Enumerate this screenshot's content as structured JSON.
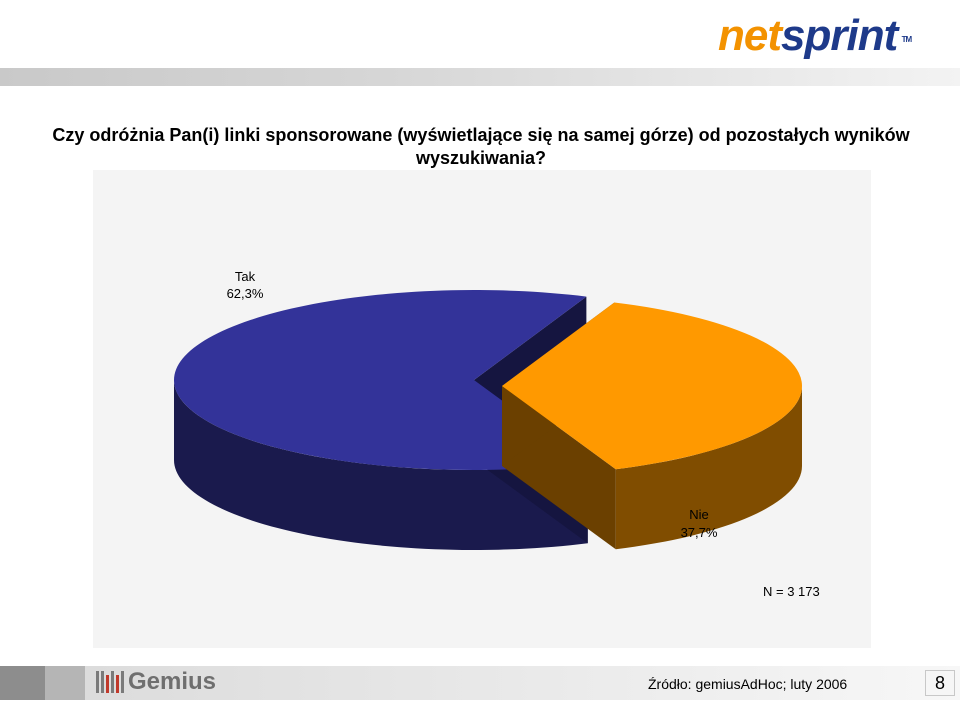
{
  "logo": {
    "part1": "net",
    "part2": "sprint",
    "tm": "TM"
  },
  "title": "Czy odróżnia Pan(i) linki sponsorowane (wyświetlające się na samej górze) od pozostałych wyników wyszukiwania?",
  "chart_data": {
    "type": "pie",
    "title": "Czy odróżnia Pan(i) linki sponsorowane (wyświetlające się na samej górze) od pozostałych wyników wyszukiwania?",
    "categories": [
      "Tak",
      "Nie"
    ],
    "values": [
      62.3,
      37.7
    ],
    "value_labels": [
      "62,3%",
      "37,7%"
    ],
    "colors": [
      "#333399",
      "#ff9900"
    ],
    "exploded": "Nie",
    "three_d": true,
    "legend": "none",
    "note": "N = 3 173"
  },
  "footer": {
    "brand": "Gemius",
    "source": "Źródło: gemiusAdHoc; luty 2006",
    "page": "8"
  }
}
